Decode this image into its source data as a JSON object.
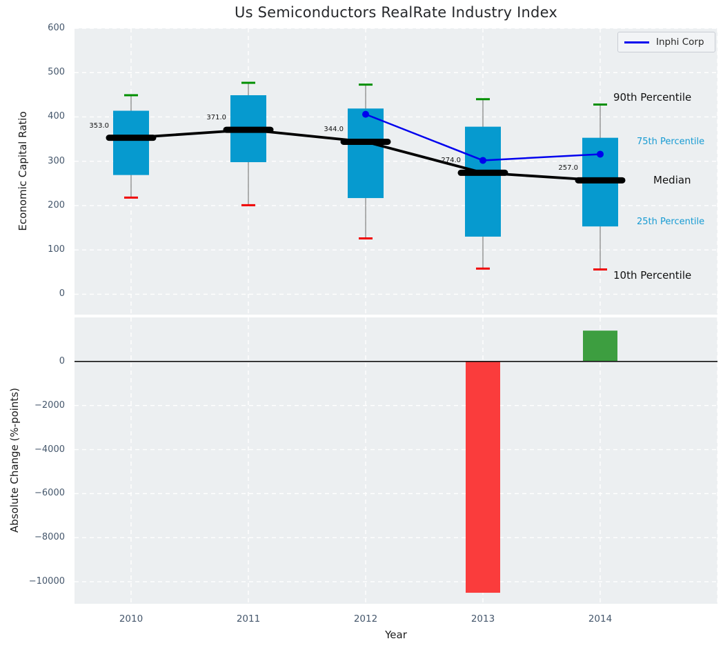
{
  "title": "Us Semiconductors RealRate Industry Index",
  "legend": {
    "label": "Inphi Corp"
  },
  "colors": {
    "box": "#069ACF",
    "median": "#000000",
    "whisker": "#7f7f7f",
    "cap_top": "#008F00",
    "cap_bottom": "#F00000",
    "inphi_line": "#0000EE",
    "bar_negative": "#FA3C3C",
    "bar_positive": "#3D9E40",
    "plot_bg": "#ECEFF1",
    "grid": "#FFFFFF",
    "zero_line": "#111111",
    "tick_text": "#44566B",
    "percentile_text": "#179BD3"
  },
  "chart_data": [
    {
      "type": "box-line",
      "title": "Us Semiconductors RealRate Industry Index",
      "ylabel": "Economic Capital Ratio",
      "xlabel": "Year",
      "categories": [
        "2010",
        "2011",
        "2012",
        "2013",
        "2014"
      ],
      "ylim": [
        -46,
        600
      ],
      "yticks": [
        0,
        100,
        200,
        300,
        400,
        500,
        600
      ],
      "ytick_labels": [
        "0",
        "100",
        "200",
        "300",
        "400",
        "500",
        "600"
      ],
      "grid": true,
      "legend_position": "top-right",
      "series": [
        {
          "name": "90th Percentile",
          "values": [
            449,
            477,
            473,
            440,
            428
          ]
        },
        {
          "name": "75th Percentile",
          "values": [
            414,
            449,
            419,
            378,
            353
          ]
        },
        {
          "name": "Median",
          "values": [
            353,
            371,
            344,
            274,
            257
          ]
        },
        {
          "name": "25th Percentile",
          "values": [
            269,
            298,
            217,
            130,
            153
          ]
        },
        {
          "name": "10th Percentile",
          "values": [
            218,
            201,
            126,
            58,
            56
          ]
        },
        {
          "name": "Inphi Corp",
          "categories": [
            "2012",
            "2013",
            "2014"
          ],
          "values": [
            406,
            302,
            316
          ]
        }
      ],
      "median_point_labels": [
        "353.0",
        "371.0",
        "344.0",
        "274.0",
        "257.0"
      ],
      "right_annotations": [
        "90th Percentile",
        "75th Percentile",
        "Median",
        "25th Percentile",
        "10th Percentile"
      ]
    },
    {
      "type": "bar",
      "ylabel": "Absolute Change (%-points)",
      "xlabel": "Year",
      "categories": [
        "2010",
        "2011",
        "2012",
        "2013",
        "2014"
      ],
      "values": [
        null,
        null,
        null,
        -10500,
        1400
      ],
      "ylim": [
        -11000,
        2000
      ],
      "yticks": [
        0,
        -2000,
        -4000,
        -6000,
        -8000,
        -10000
      ],
      "ytick_labels": [
        "0",
        "−2000",
        "−4000",
        "−6000",
        "−8000",
        "−10000"
      ],
      "grid": true
    }
  ]
}
